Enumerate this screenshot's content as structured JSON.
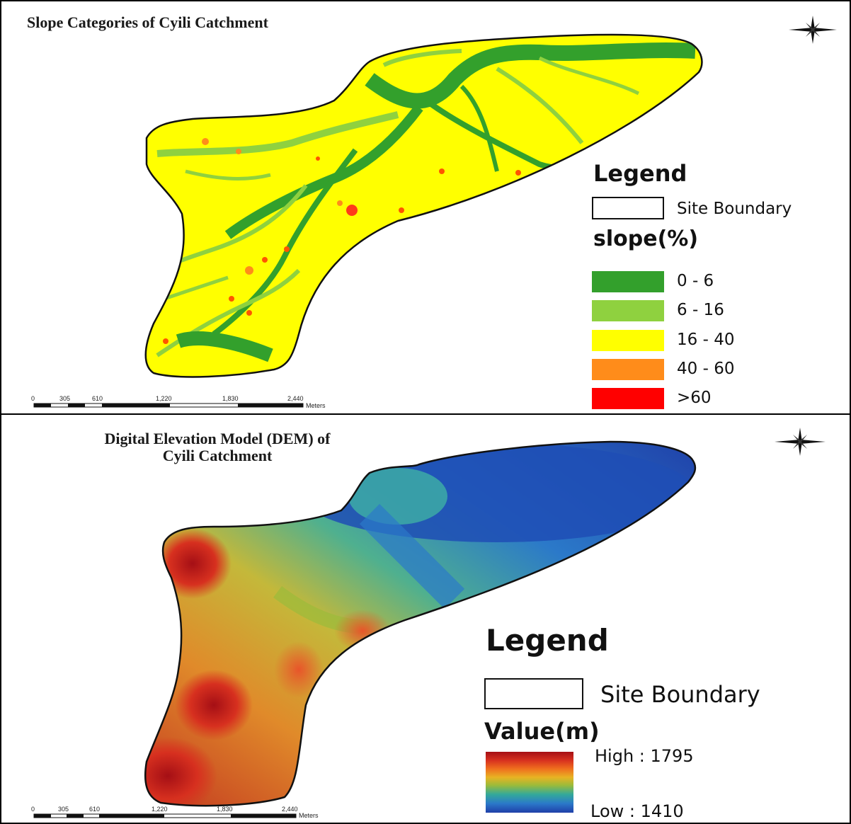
{
  "top_map": {
    "title": "Slope Categories of Cyili Catchment",
    "legend_title": "Legend",
    "boundary_label": "Site Boundary",
    "slope_title": "slope(%)",
    "classes": [
      {
        "label": "0 - 6",
        "color": "#33a02c"
      },
      {
        "label": "6 - 16",
        "color": "#8fd13f"
      },
      {
        "label": "16 - 40",
        "color": "#ffff00"
      },
      {
        "label": "40 - 60",
        "color": "#ff8c1a"
      },
      {
        "label": ">60",
        "color": "#ff0000"
      }
    ],
    "scale": {
      "ticks": [
        "0",
        "305",
        "610",
        "1,220",
        "1,830",
        "2,440"
      ],
      "unit": "Meters"
    }
  },
  "bottom_map": {
    "title_line1": "Digital Elevation Model (DEM) of",
    "title_line2": "Cyili Catchment",
    "legend_title": "Legend",
    "boundary_label": "Site Boundary",
    "value_title": "Value(m)",
    "high_label": "High : 1795",
    "low_label": "Low : 1410",
    "scale": {
      "ticks": [
        "0",
        "305",
        "610",
        "1,220",
        "1,830",
        "2,440"
      ],
      "unit": "Meters"
    }
  },
  "colors": {
    "dem_high": "#a50f15",
    "dem_low": "#1f3fa8"
  },
  "icons": {
    "north_arrow": "compass-rose-icon"
  }
}
